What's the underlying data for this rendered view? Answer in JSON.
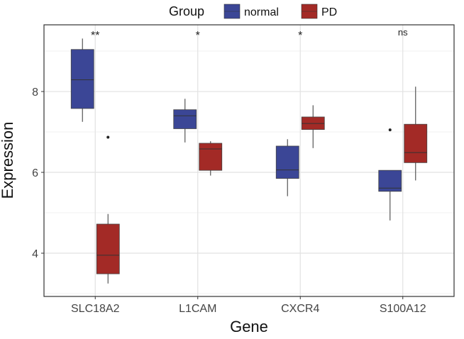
{
  "chart_data": {
    "type": "boxplot",
    "xlabel": "Gene",
    "ylabel": "Expression",
    "ylim": [
      2.93,
      9.65
    ],
    "yticks": [
      4,
      6,
      8
    ],
    "grid": true,
    "legend": {
      "title": "Group",
      "placement": "top",
      "entries": [
        "normal",
        "PD"
      ]
    },
    "colors": {
      "normal": "#3b4696",
      "PD": "#a32a26"
    },
    "categories": [
      "SLC18A2",
      "L1CAM",
      "CXCR4",
      "S100A12"
    ],
    "significance": [
      "**",
      "*",
      "*",
      "ns"
    ],
    "series": [
      {
        "name": "normal",
        "boxes": [
          {
            "whisker_low": 7.25,
            "q1": 7.58,
            "median": 8.29,
            "q3": 9.04,
            "whisker_high": 9.31,
            "outliers": []
          },
          {
            "whisker_low": 6.74,
            "q1": 7.08,
            "median": 7.4,
            "q3": 7.55,
            "whisker_high": 7.82,
            "outliers": []
          },
          {
            "whisker_low": 5.41,
            "q1": 5.85,
            "median": 6.06,
            "q3": 6.65,
            "whisker_high": 6.82,
            "outliers": []
          },
          {
            "whisker_low": 4.81,
            "q1": 5.53,
            "median": 5.61,
            "q3": 6.05,
            "whisker_high": 6.05,
            "outliers": [
              7.05
            ]
          }
        ]
      },
      {
        "name": "PD",
        "boxes": [
          {
            "whisker_low": 3.25,
            "q1": 3.49,
            "median": 3.95,
            "q3": 4.72,
            "whisker_high": 4.97,
            "outliers": [
              6.87
            ]
          },
          {
            "whisker_low": 5.92,
            "q1": 6.05,
            "median": 6.58,
            "q3": 6.72,
            "whisker_high": 6.77,
            "outliers": []
          },
          {
            "whisker_low": 6.6,
            "q1": 7.06,
            "median": 7.21,
            "q3": 7.37,
            "whisker_high": 7.66,
            "outliers": []
          },
          {
            "whisker_low": 5.8,
            "q1": 6.24,
            "median": 6.49,
            "q3": 7.19,
            "whisker_high": 8.12,
            "outliers": []
          }
        ]
      }
    ]
  }
}
